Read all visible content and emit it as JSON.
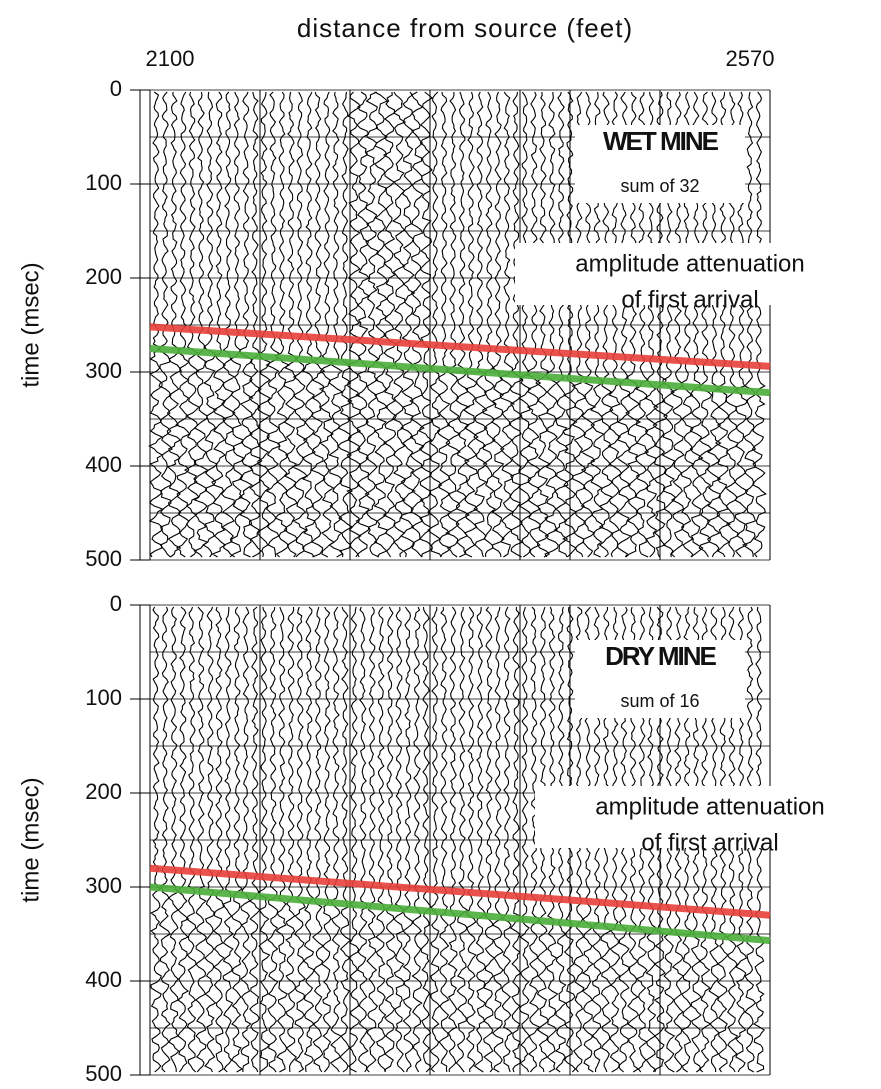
{
  "chart_data": [
    {
      "type": "seismic",
      "title": "distance from source (feet)",
      "xlim": [
        2100,
        2570
      ],
      "xticks": [
        2100,
        2570
      ],
      "ylabel": "time (msec)",
      "ylim": [
        0,
        500
      ],
      "yticks": [
        0,
        100,
        200,
        300,
        400,
        500
      ],
      "minor_yticks": [
        50,
        150,
        250,
        350,
        450
      ],
      "grid": true,
      "box_lines": [
        "WET MINE",
        "sum of 32"
      ],
      "note_lines": [
        "amplitude attenuation",
        "of first arrival"
      ],
      "lines": [
        {
          "color": "#e8413a",
          "x": [
            2100,
            2570
          ],
          "values": [
            252,
            294
          ]
        },
        {
          "color": "#4caf3a",
          "x": [
            2100,
            2570
          ],
          "values": [
            275,
            322
          ]
        }
      ]
    },
    {
      "type": "seismic",
      "ylabel": "time (msec)",
      "ylim": [
        0,
        500
      ],
      "yticks": [
        0,
        100,
        200,
        300,
        400,
        500
      ],
      "minor_yticks": [
        50,
        150,
        250,
        350,
        450
      ],
      "grid": true,
      "box_lines": [
        "DRY MINE",
        "sum of 16"
      ],
      "note_lines": [
        "amplitude attenuation",
        "of first arrival"
      ],
      "lines": [
        {
          "color": "#e8413a",
          "x": [
            2100,
            2570
          ],
          "values": [
            280,
            330
          ]
        },
        {
          "color": "#4caf3a",
          "x": [
            2100,
            2570
          ],
          "values": [
            300,
            357
          ]
        }
      ]
    }
  ]
}
